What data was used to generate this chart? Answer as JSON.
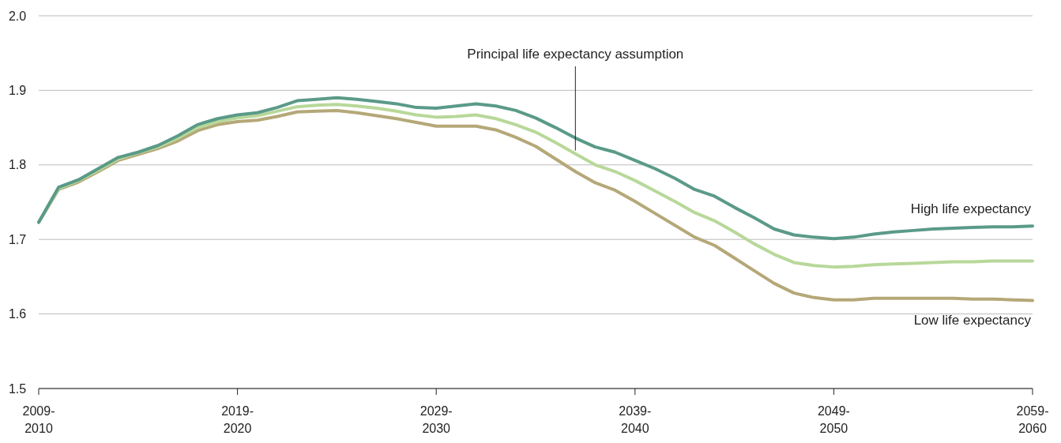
{
  "chart_data": {
    "type": "line",
    "categories": [
      "2009-2010",
      null,
      null,
      null,
      null,
      null,
      null,
      null,
      null,
      null,
      "2019-2020",
      null,
      null,
      null,
      null,
      null,
      null,
      null,
      null,
      null,
      "2029-2030",
      null,
      null,
      null,
      null,
      null,
      null,
      null,
      null,
      null,
      "2039-2040",
      null,
      null,
      null,
      null,
      null,
      null,
      null,
      null,
      null,
      "2049-2050",
      null,
      null,
      null,
      null,
      null,
      null,
      null,
      null,
      null,
      "2059-2060"
    ],
    "series": [
      {
        "name": "High life expectancy",
        "color": "#5a9a88",
        "values": [
          1.723,
          1.77,
          1.78,
          1.795,
          1.81,
          1.817,
          1.826,
          1.839,
          1.854,
          1.862,
          1.867,
          1.87,
          1.877,
          1.886,
          1.888,
          1.89,
          1.888,
          1.885,
          1.882,
          1.877,
          1.876,
          1.879,
          1.882,
          1.879,
          1.873,
          1.863,
          1.85,
          1.836,
          1.824,
          1.817,
          1.806,
          1.795,
          1.782,
          1.767,
          1.758,
          1.743,
          1.729,
          1.714,
          1.706,
          1.703,
          1.701,
          1.703,
          1.707,
          1.71,
          1.712,
          1.714,
          1.715,
          1.716,
          1.717,
          1.717,
          1.718
        ]
      },
      {
        "name": "Principal life expectancy assumption",
        "color": "#b8d89a",
        "values": [
          1.723,
          1.768,
          1.779,
          1.793,
          1.808,
          1.816,
          1.824,
          1.836,
          1.85,
          1.858,
          1.863,
          1.866,
          1.872,
          1.878,
          1.88,
          1.881,
          1.879,
          1.876,
          1.872,
          1.867,
          1.864,
          1.865,
          1.867,
          1.862,
          1.854,
          1.844,
          1.83,
          1.815,
          1.8,
          1.791,
          1.779,
          1.765,
          1.751,
          1.736,
          1.725,
          1.71,
          1.694,
          1.68,
          1.669,
          1.665,
          1.663,
          1.664,
          1.666,
          1.667,
          1.668,
          1.669,
          1.67,
          1.67,
          1.671,
          1.671,
          1.671
        ]
      },
      {
        "name": "Low life expectancy",
        "color": "#b5a878",
        "values": [
          1.723,
          1.767,
          1.777,
          1.791,
          1.806,
          1.814,
          1.822,
          1.832,
          1.846,
          1.854,
          1.858,
          1.86,
          1.865,
          1.871,
          1.872,
          1.873,
          1.87,
          1.866,
          1.862,
          1.857,
          1.852,
          1.852,
          1.852,
          1.847,
          1.837,
          1.825,
          1.808,
          1.791,
          1.776,
          1.766,
          1.751,
          1.735,
          1.719,
          1.703,
          1.692,
          1.675,
          1.658,
          1.641,
          1.628,
          1.622,
          1.619,
          1.619,
          1.621,
          1.621,
          1.621,
          1.621,
          1.621,
          1.62,
          1.62,
          1.619,
          1.618
        ]
      }
    ],
    "ylim": [
      1.5,
      2.0
    ],
    "yticks": [
      1.5,
      1.6,
      1.7,
      1.8,
      1.9,
      {
        "value": 2.0,
        "label": "2.0"
      }
    ],
    "grid": "y",
    "legend": false,
    "marker": "none",
    "line_style": "solid"
  }
}
